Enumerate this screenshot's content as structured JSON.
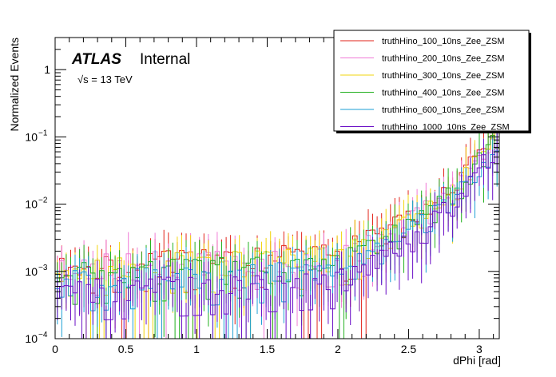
{
  "chart_data": {
    "type": "line",
    "subtype": "step-histogram",
    "xlabel": "dPhi [rad]",
    "ylabel": "Normalized Events",
    "xlim": [
      0,
      3.1416
    ],
    "ylim": [
      0.0001,
      3
    ],
    "yscale": "log",
    "x_ticks": [
      {
        "v": 0,
        "label": "0"
      },
      {
        "v": 0.5,
        "label": "0.5"
      },
      {
        "v": 1,
        "label": "1"
      },
      {
        "v": 1.5,
        "label": "1.5"
      },
      {
        "v": 2,
        "label": "2"
      },
      {
        "v": 2.5,
        "label": "2.5"
      },
      {
        "v": 3,
        "label": "3"
      }
    ],
    "y_ticks": [
      {
        "v": 0.0001,
        "base": "10",
        "exp": "−4"
      },
      {
        "v": 0.001,
        "base": "10",
        "exp": "−3"
      },
      {
        "v": 0.01,
        "base": "10",
        "exp": "−2"
      },
      {
        "v": 0.1,
        "base": "10",
        "exp": "−1"
      },
      {
        "v": 1,
        "plain": "1"
      }
    ],
    "annotation": {
      "experiment": "ATLAS",
      "status": "Internal",
      "energy": "√s = 13 TeV"
    },
    "legend_position": "top-right",
    "series": [
      {
        "name": "truthHino_100_10ns_Zee_ZSM",
        "color": "#e2231a",
        "seed": 11,
        "anchors": [
          [
            0.0,
            0.0013
          ],
          [
            2.0,
            0.0018
          ],
          [
            2.3,
            0.0035
          ],
          [
            2.6,
            0.008
          ],
          [
            2.8,
            0.017
          ],
          [
            3.0,
            0.05
          ],
          [
            3.1416,
            0.14
          ]
        ]
      },
      {
        "name": "truthHino_200_10ns_Zee_ZSM",
        "color": "#f07ad6",
        "seed": 23,
        "anchors": [
          [
            0.0,
            0.0012
          ],
          [
            2.0,
            0.0017
          ],
          [
            2.3,
            0.003
          ],
          [
            2.6,
            0.0075
          ],
          [
            2.8,
            0.016
          ],
          [
            3.0,
            0.048
          ],
          [
            3.1416,
            0.13
          ]
        ]
      },
      {
        "name": "truthHino_300_10ns_Zee_ZSM",
        "color": "#f2d40c",
        "seed": 37,
        "anchors": [
          [
            0.0,
            0.0012
          ],
          [
            2.0,
            0.0016
          ],
          [
            2.3,
            0.003
          ],
          [
            2.6,
            0.007
          ],
          [
            2.8,
            0.015
          ],
          [
            3.0,
            0.045
          ],
          [
            3.1416,
            0.13
          ]
        ]
      },
      {
        "name": "truthHino_400_10ns_Zee_ZSM",
        "color": "#22b01e",
        "seed": 51,
        "anchors": [
          [
            0.0,
            0.0009
          ],
          [
            2.0,
            0.0013
          ],
          [
            2.3,
            0.0025
          ],
          [
            2.6,
            0.006
          ],
          [
            2.8,
            0.013
          ],
          [
            3.0,
            0.04
          ],
          [
            3.1416,
            0.12
          ]
        ]
      },
      {
        "name": "truthHino_600_10ns_Zee_ZSM",
        "color": "#1b9fd4",
        "seed": 67,
        "anchors": [
          [
            0.0,
            0.0007
          ],
          [
            2.0,
            0.0011
          ],
          [
            2.3,
            0.002
          ],
          [
            2.6,
            0.005
          ],
          [
            2.8,
            0.011
          ],
          [
            3.0,
            0.036
          ],
          [
            3.1416,
            0.11
          ]
        ]
      },
      {
        "name": "truthHino_1000_10ns_Zee_ZSM",
        "color": "#6a0dc6",
        "seed": 83,
        "anchors": [
          [
            0.0,
            0.0005
          ],
          [
            2.0,
            0.0008
          ],
          [
            2.3,
            0.0016
          ],
          [
            2.6,
            0.004
          ],
          [
            2.8,
            0.009
          ],
          [
            3.0,
            0.03
          ],
          [
            3.1416,
            0.1
          ]
        ]
      }
    ]
  }
}
